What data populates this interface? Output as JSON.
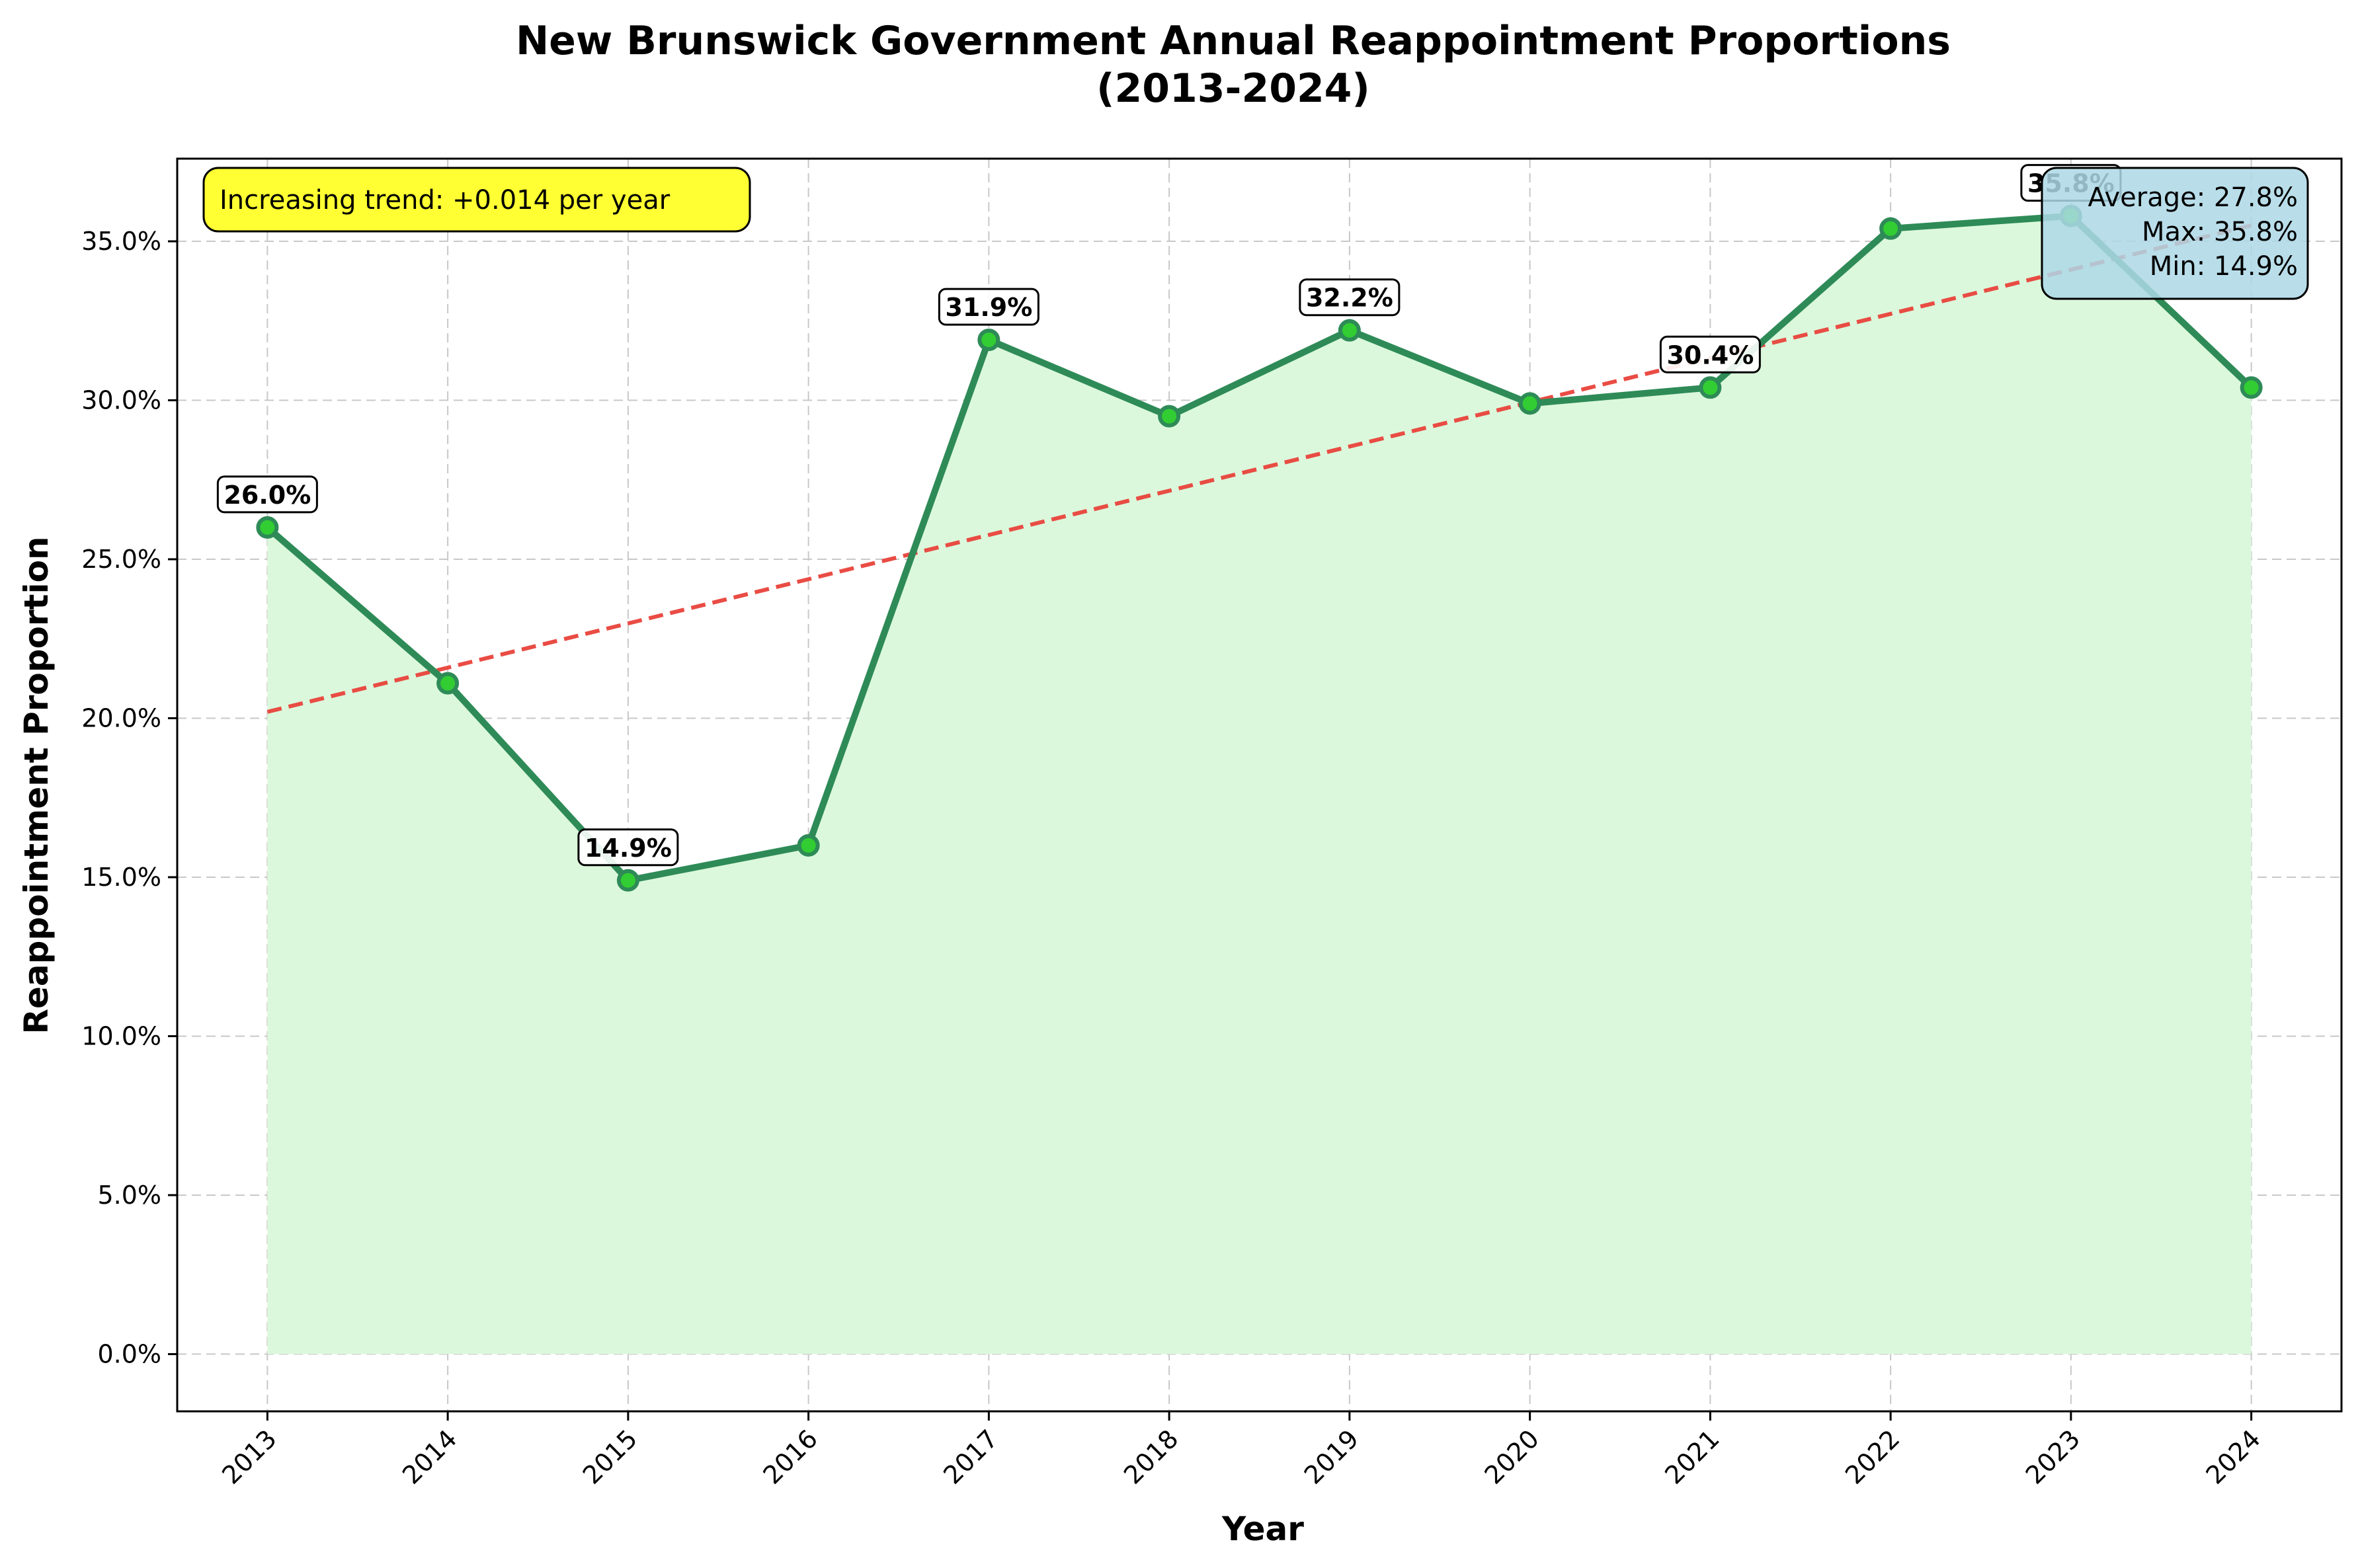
{
  "chart_data": {
    "type": "line",
    "title_line1": "New Brunswick Government Annual Reappointment Proportions",
    "title_line2": "(2013-2024)",
    "xlabel": "Year",
    "ylabel": "Reappointment Proportion",
    "x": [
      2013,
      2014,
      2015,
      2016,
      2017,
      2018,
      2019,
      2020,
      2021,
      2022,
      2023,
      2024
    ],
    "x_tick_labels": [
      "2013",
      "2014",
      "2015",
      "2016",
      "2017",
      "2018",
      "2019",
      "2020",
      "2021",
      "2022",
      "2023",
      "2024"
    ],
    "values": [
      0.26,
      0.211,
      0.149,
      0.16,
      0.319,
      0.295,
      0.322,
      0.299,
      0.304,
      0.354,
      0.358,
      0.304
    ],
    "ylim": [
      -0.018,
      0.376
    ],
    "y_ticks": [
      0.0,
      0.05,
      0.1,
      0.15,
      0.2,
      0.25,
      0.3,
      0.35
    ],
    "y_tick_labels": [
      "0.0%",
      "5.0%",
      "10.0%",
      "15.0%",
      "20.0%",
      "25.0%",
      "30.0%",
      "35.0%"
    ],
    "data_labels": [
      {
        "index": 0,
        "text": "26.0%"
      },
      {
        "index": 2,
        "text": "14.9%"
      },
      {
        "index": 4,
        "text": "31.9%"
      },
      {
        "index": 6,
        "text": "32.2%"
      },
      {
        "index": 8,
        "text": "30.4%"
      },
      {
        "index": 10,
        "text": "35.8%"
      }
    ],
    "trend_line": {
      "start": [
        2013,
        0.202
      ],
      "end": [
        2024,
        0.355
      ],
      "color": "#e8423a"
    },
    "trend_annotation": "Increasing trend: +0.014 per year",
    "stats_box": [
      "Average: 27.8%",
      "Max: 35.8%",
      "Min: 14.9%"
    ],
    "grid": true,
    "colors": {
      "line": "#2e8b57",
      "marker_fill": "#32cd32",
      "area_fill": "#dcf8dc",
      "trend_box": "#ffff33",
      "stats_box": "#add8e6"
    }
  }
}
